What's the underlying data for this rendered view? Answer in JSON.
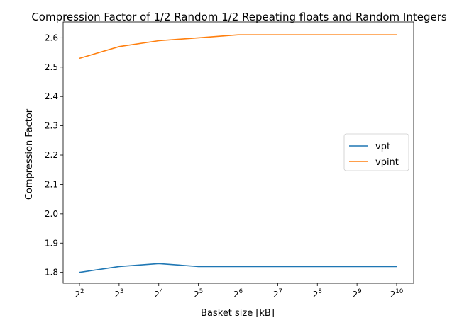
{
  "chart_data": {
    "type": "line",
    "title": "Compression Factor of 1/2 Random 1/2 Repeating floats and Random Integers",
    "xlabel": "Basket size [kB]",
    "ylabel": "Compression Factor",
    "x_scale": "log2",
    "x": [
      4,
      8,
      16,
      32,
      64,
      128,
      256,
      512,
      1024
    ],
    "x_tick_labels": [
      {
        "base": "2",
        "exp": "2"
      },
      {
        "base": "2",
        "exp": "3"
      },
      {
        "base": "2",
        "exp": "4"
      },
      {
        "base": "2",
        "exp": "5"
      },
      {
        "base": "2",
        "exp": "6"
      },
      {
        "base": "2",
        "exp": "7"
      },
      {
        "base": "2",
        "exp": "8"
      },
      {
        "base": "2",
        "exp": "9"
      },
      {
        "base": "2",
        "exp": "10"
      }
    ],
    "y_ticks": [
      "1.8",
      "1.9",
      "2.0",
      "2.1",
      "2.2",
      "2.3",
      "2.4",
      "2.5",
      "2.6"
    ],
    "ylim": [
      1.763,
      2.654
    ],
    "grid": false,
    "legend_position": "center-right",
    "series": [
      {
        "name": "vpt",
        "color": "#1f77b4",
        "values": [
          1.8,
          1.82,
          1.83,
          1.82,
          1.82,
          1.82,
          1.82,
          1.82,
          1.82
        ]
      },
      {
        "name": "vpint",
        "color": "#ff7f0e",
        "values": [
          2.53,
          2.57,
          2.59,
          2.6,
          2.61,
          2.61,
          2.61,
          2.61,
          2.61
        ]
      }
    ]
  }
}
